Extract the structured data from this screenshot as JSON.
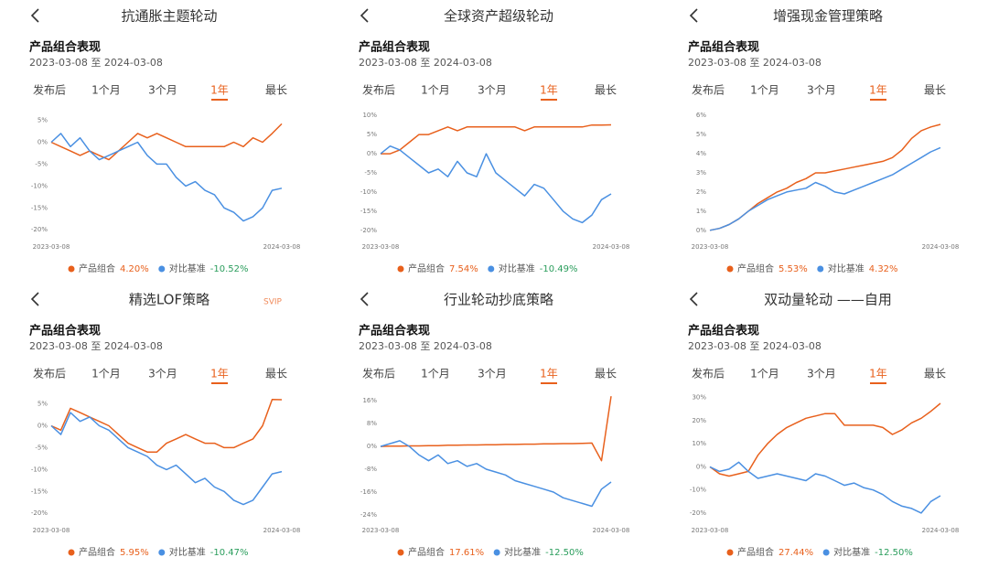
{
  "chart_data": [
    {
      "type": "line",
      "header": "抗通胀主题轮动",
      "subtitle": "产品组合表现",
      "date_range": "2023-03-08 至 2024-03-08",
      "tabs": [
        "发布后",
        "1个月",
        "3个月",
        "1年",
        "最长"
      ],
      "active_tab": 3,
      "categories": [
        "2023-03-08",
        null,
        null,
        null,
        null,
        null,
        null,
        null,
        null,
        null,
        null,
        null,
        null,
        null,
        null,
        null,
        null,
        null,
        null,
        null,
        null,
        null,
        null,
        null,
        "2024-03-08"
      ],
      "ylim": [
        -21,
        7
      ],
      "yticks": [
        {
          "value": 5,
          "label": "5%"
        },
        {
          "value": 0,
          "label": "0%"
        },
        {
          "value": -5,
          "label": "-5%"
        },
        {
          "value": -10,
          "label": "-10%"
        },
        {
          "value": -15,
          "label": "-15%"
        },
        {
          "value": -20,
          "label": "-20%"
        }
      ],
      "series": [
        {
          "name": "产品组合",
          "color": "#e8601c",
          "label": "4.20%",
          "label_color": "#e8601c",
          "values": [
            0,
            -1,
            -2,
            -3,
            -2,
            -3,
            -4,
            -2,
            0,
            2,
            1,
            2,
            1,
            0,
            -1,
            -1,
            -1,
            -1,
            -1,
            0,
            -1,
            1,
            0,
            2,
            4.2
          ]
        },
        {
          "name": "对比基准",
          "color": "#4a90e2",
          "label": "-10.52%",
          "label_color": "#2a9d5c",
          "values": [
            0,
            2,
            -1,
            1,
            -2,
            -4,
            -3,
            -2,
            -1,
            0,
            -3,
            -5,
            -5,
            -8,
            -10,
            -9,
            -11,
            -12,
            -15,
            -16,
            -18,
            -17,
            -15,
            -11,
            -10.52
          ]
        }
      ]
    },
    {
      "type": "line",
      "header": "全球资产超级轮动",
      "subtitle": "产品组合表现",
      "date_range": "2023-03-08 至 2024-03-08",
      "tabs": [
        "发布后",
        "1个月",
        "3个月",
        "1年",
        "最长"
      ],
      "active_tab": 3,
      "categories": [
        "2023-03-08",
        null,
        null,
        null,
        null,
        null,
        null,
        null,
        null,
        null,
        null,
        null,
        null,
        null,
        null,
        null,
        null,
        null,
        null,
        null,
        null,
        null,
        null,
        null,
        "2024-03-08"
      ],
      "ylim": [
        -21,
        11
      ],
      "yticks": [
        {
          "value": 10,
          "label": "10%"
        },
        {
          "value": 5,
          "label": "5%"
        },
        {
          "value": 0,
          "label": "0%"
        },
        {
          "value": -5,
          "label": "-5%"
        },
        {
          "value": -10,
          "label": "-10%"
        },
        {
          "value": -15,
          "label": "-15%"
        },
        {
          "value": -20,
          "label": "-20%"
        }
      ],
      "series": [
        {
          "name": "产品组合",
          "color": "#e8601c",
          "label": "7.54%",
          "label_color": "#e8601c",
          "values": [
            0,
            0,
            1,
            3,
            5,
            5,
            6,
            7,
            6,
            7,
            7,
            7,
            7,
            7,
            7,
            6,
            7,
            7,
            7,
            7,
            7,
            7,
            7.5,
            7.5,
            7.54
          ]
        },
        {
          "name": "对比基准",
          "color": "#4a90e2",
          "label": "-10.49%",
          "label_color": "#2a9d5c",
          "values": [
            0,
            2,
            1,
            -1,
            -3,
            -5,
            -4,
            -6,
            -2,
            -5,
            -6,
            0,
            -5,
            -7,
            -9,
            -11,
            -8,
            -9,
            -12,
            -15,
            -17,
            -18,
            -16,
            -12,
            -10.49
          ]
        }
      ]
    },
    {
      "type": "line",
      "header": "增强现金管理策略",
      "subtitle": "产品组合表现",
      "date_range": "2023-03-08 至 2024-03-08",
      "tabs": [
        "发布后",
        "1个月",
        "3个月",
        "1年",
        "最长"
      ],
      "active_tab": 3,
      "categories": [
        "2023-03-08",
        null,
        null,
        null,
        null,
        null,
        null,
        null,
        null,
        null,
        null,
        null,
        null,
        null,
        null,
        null,
        null,
        null,
        null,
        null,
        null,
        null,
        null,
        null,
        "2024-03-08"
      ],
      "ylim": [
        -0.2,
        6.2
      ],
      "yticks": [
        {
          "value": 6,
          "label": "6%"
        },
        {
          "value": 5,
          "label": "5%"
        },
        {
          "value": 4,
          "label": "4%"
        },
        {
          "value": 3,
          "label": "3%"
        },
        {
          "value": 2,
          "label": "2%"
        },
        {
          "value": 1,
          "label": "1%"
        },
        {
          "value": 0,
          "label": "0%"
        }
      ],
      "series": [
        {
          "name": "产品组合",
          "color": "#e8601c",
          "label": "5.53%",
          "label_color": "#e8601c",
          "values": [
            0,
            0.1,
            0.3,
            0.6,
            1,
            1.4,
            1.7,
            2,
            2.2,
            2.5,
            2.7,
            3,
            3,
            3.1,
            3.2,
            3.3,
            3.4,
            3.5,
            3.6,
            3.8,
            4.2,
            4.8,
            5.2,
            5.4,
            5.53
          ]
        },
        {
          "name": "对比基准",
          "color": "#4a90e2",
          "label": "4.32%",
          "label_color": "#e8601c",
          "values": [
            0,
            0.1,
            0.3,
            0.6,
            1,
            1.3,
            1.6,
            1.8,
            2,
            2.1,
            2.2,
            2.5,
            2.3,
            2,
            1.9,
            2.1,
            2.3,
            2.5,
            2.7,
            2.9,
            3.2,
            3.5,
            3.8,
            4.1,
            4.32
          ]
        }
      ]
    },
    {
      "type": "line",
      "header": "精选LOF策略",
      "badge": "SVIP",
      "subtitle": "产品组合表现",
      "date_range": "2023-03-08 至 2024-03-08",
      "tabs": [
        "发布后",
        "1个月",
        "3个月",
        "1年",
        "最长"
      ],
      "active_tab": 3,
      "categories": [
        "2023-03-08",
        null,
        null,
        null,
        null,
        null,
        null,
        null,
        null,
        null,
        null,
        null,
        null,
        null,
        null,
        null,
        null,
        null,
        null,
        null,
        null,
        null,
        null,
        null,
        "2024-03-08"
      ],
      "ylim": [
        -21,
        7
      ],
      "yticks": [
        {
          "value": 5,
          "label": "5%"
        },
        {
          "value": 0,
          "label": "0%"
        },
        {
          "value": -5,
          "label": "-5%"
        },
        {
          "value": -10,
          "label": "-10%"
        },
        {
          "value": -15,
          "label": "-15%"
        },
        {
          "value": -20,
          "label": "-20%"
        }
      ],
      "series": [
        {
          "name": "产品组合",
          "color": "#e8601c",
          "label": "5.95%",
          "label_color": "#e8601c",
          "values": [
            0,
            -1,
            4,
            3,
            2,
            1,
            0,
            -2,
            -4,
            -5,
            -6,
            -6,
            -4,
            -3,
            -2,
            -3,
            -4,
            -4,
            -5,
            -5,
            -4,
            -3,
            0,
            6,
            5.95
          ]
        },
        {
          "name": "对比基准",
          "color": "#4a90e2",
          "label": "-10.47%",
          "label_color": "#2a9d5c",
          "values": [
            0,
            -2,
            3,
            1,
            2,
            0,
            -1,
            -3,
            -5,
            -6,
            -7,
            -9,
            -10,
            -9,
            -11,
            -13,
            -12,
            -14,
            -15,
            -17,
            -18,
            -17,
            -14,
            -11,
            -10.47
          ]
        }
      ]
    },
    {
      "type": "line",
      "header": "行业轮动抄底策略",
      "subtitle": "产品组合表现",
      "date_range": "2023-03-08 至 2024-03-08",
      "tabs": [
        "发布后",
        "1个月",
        "3个月",
        "1年",
        "最长"
      ],
      "active_tab": 3,
      "categories": [
        "2023-03-08",
        null,
        null,
        null,
        null,
        null,
        null,
        null,
        null,
        null,
        null,
        null,
        null,
        null,
        null,
        null,
        null,
        null,
        null,
        null,
        null,
        null,
        null,
        null,
        "2024-03-08"
      ],
      "ylim": [
        -25,
        18
      ],
      "yticks": [
        {
          "value": 16,
          "label": "16%"
        },
        {
          "value": 8,
          "label": "8%"
        },
        {
          "value": 0,
          "label": "0%"
        },
        {
          "value": -8,
          "label": "-8%"
        },
        {
          "value": -16,
          "label": "-16%"
        },
        {
          "value": -24,
          "label": "-24%"
        }
      ],
      "series": [
        {
          "name": "产品组合",
          "color": "#e8601c",
          "label": "17.61%",
          "label_color": "#e8601c",
          "values": [
            0,
            0.1,
            0.1,
            0.2,
            0.2,
            0.3,
            0.3,
            0.4,
            0.4,
            0.5,
            0.5,
            0.6,
            0.6,
            0.7,
            0.7,
            0.8,
            0.8,
            0.9,
            0.9,
            1,
            1,
            1.1,
            1.2,
            -5,
            17.61
          ]
        },
        {
          "name": "对比基准",
          "color": "#4a90e2",
          "label": "-12.50%",
          "label_color": "#2a9d5c",
          "values": [
            0,
            1,
            2,
            0,
            -3,
            -5,
            -3,
            -6,
            -5,
            -7,
            -6,
            -8,
            -9,
            -10,
            -12,
            -13,
            -14,
            -15,
            -16,
            -18,
            -19,
            -20,
            -21,
            -15,
            -12.5
          ]
        }
      ]
    },
    {
      "type": "line",
      "header": "双动量轮动 ——自用",
      "subtitle": "产品组合表现",
      "date_range": "2023-03-08 至 2024-03-08",
      "tabs": [
        "发布后",
        "1个月",
        "3个月",
        "1年",
        "最长"
      ],
      "active_tab": 3,
      "categories": [
        "2023-03-08",
        null,
        null,
        null,
        null,
        null,
        null,
        null,
        null,
        null,
        null,
        null,
        null,
        null,
        null,
        null,
        null,
        null,
        null,
        null,
        null,
        null,
        null,
        null,
        "2024-03-08"
      ],
      "ylim": [
        -22,
        31
      ],
      "yticks": [
        {
          "value": 30,
          "label": "30%"
        },
        {
          "value": 20,
          "label": "20%"
        },
        {
          "value": 10,
          "label": "10%"
        },
        {
          "value": 0,
          "label": "0%"
        },
        {
          "value": -10,
          "label": "-10%"
        },
        {
          "value": -20,
          "label": "-20%"
        }
      ],
      "series": [
        {
          "name": "产品组合",
          "color": "#e8601c",
          "label": "27.44%",
          "label_color": "#e8601c",
          "values": [
            0,
            -3,
            -4,
            -3,
            -2,
            5,
            10,
            14,
            17,
            19,
            21,
            22,
            23,
            23,
            18,
            18,
            18,
            18,
            17,
            14,
            16,
            19,
            21,
            24,
            27.44
          ]
        },
        {
          "name": "对比基准",
          "color": "#4a90e2",
          "label": "-12.50%",
          "label_color": "#2a9d5c",
          "values": [
            0,
            -2,
            -1,
            2,
            -2,
            -5,
            -4,
            -3,
            -4,
            -5,
            -6,
            -3,
            -4,
            -6,
            -8,
            -7,
            -9,
            -10,
            -12,
            -15,
            -17,
            -18,
            -20,
            -15,
            -12.5
          ]
        }
      ]
    }
  ]
}
